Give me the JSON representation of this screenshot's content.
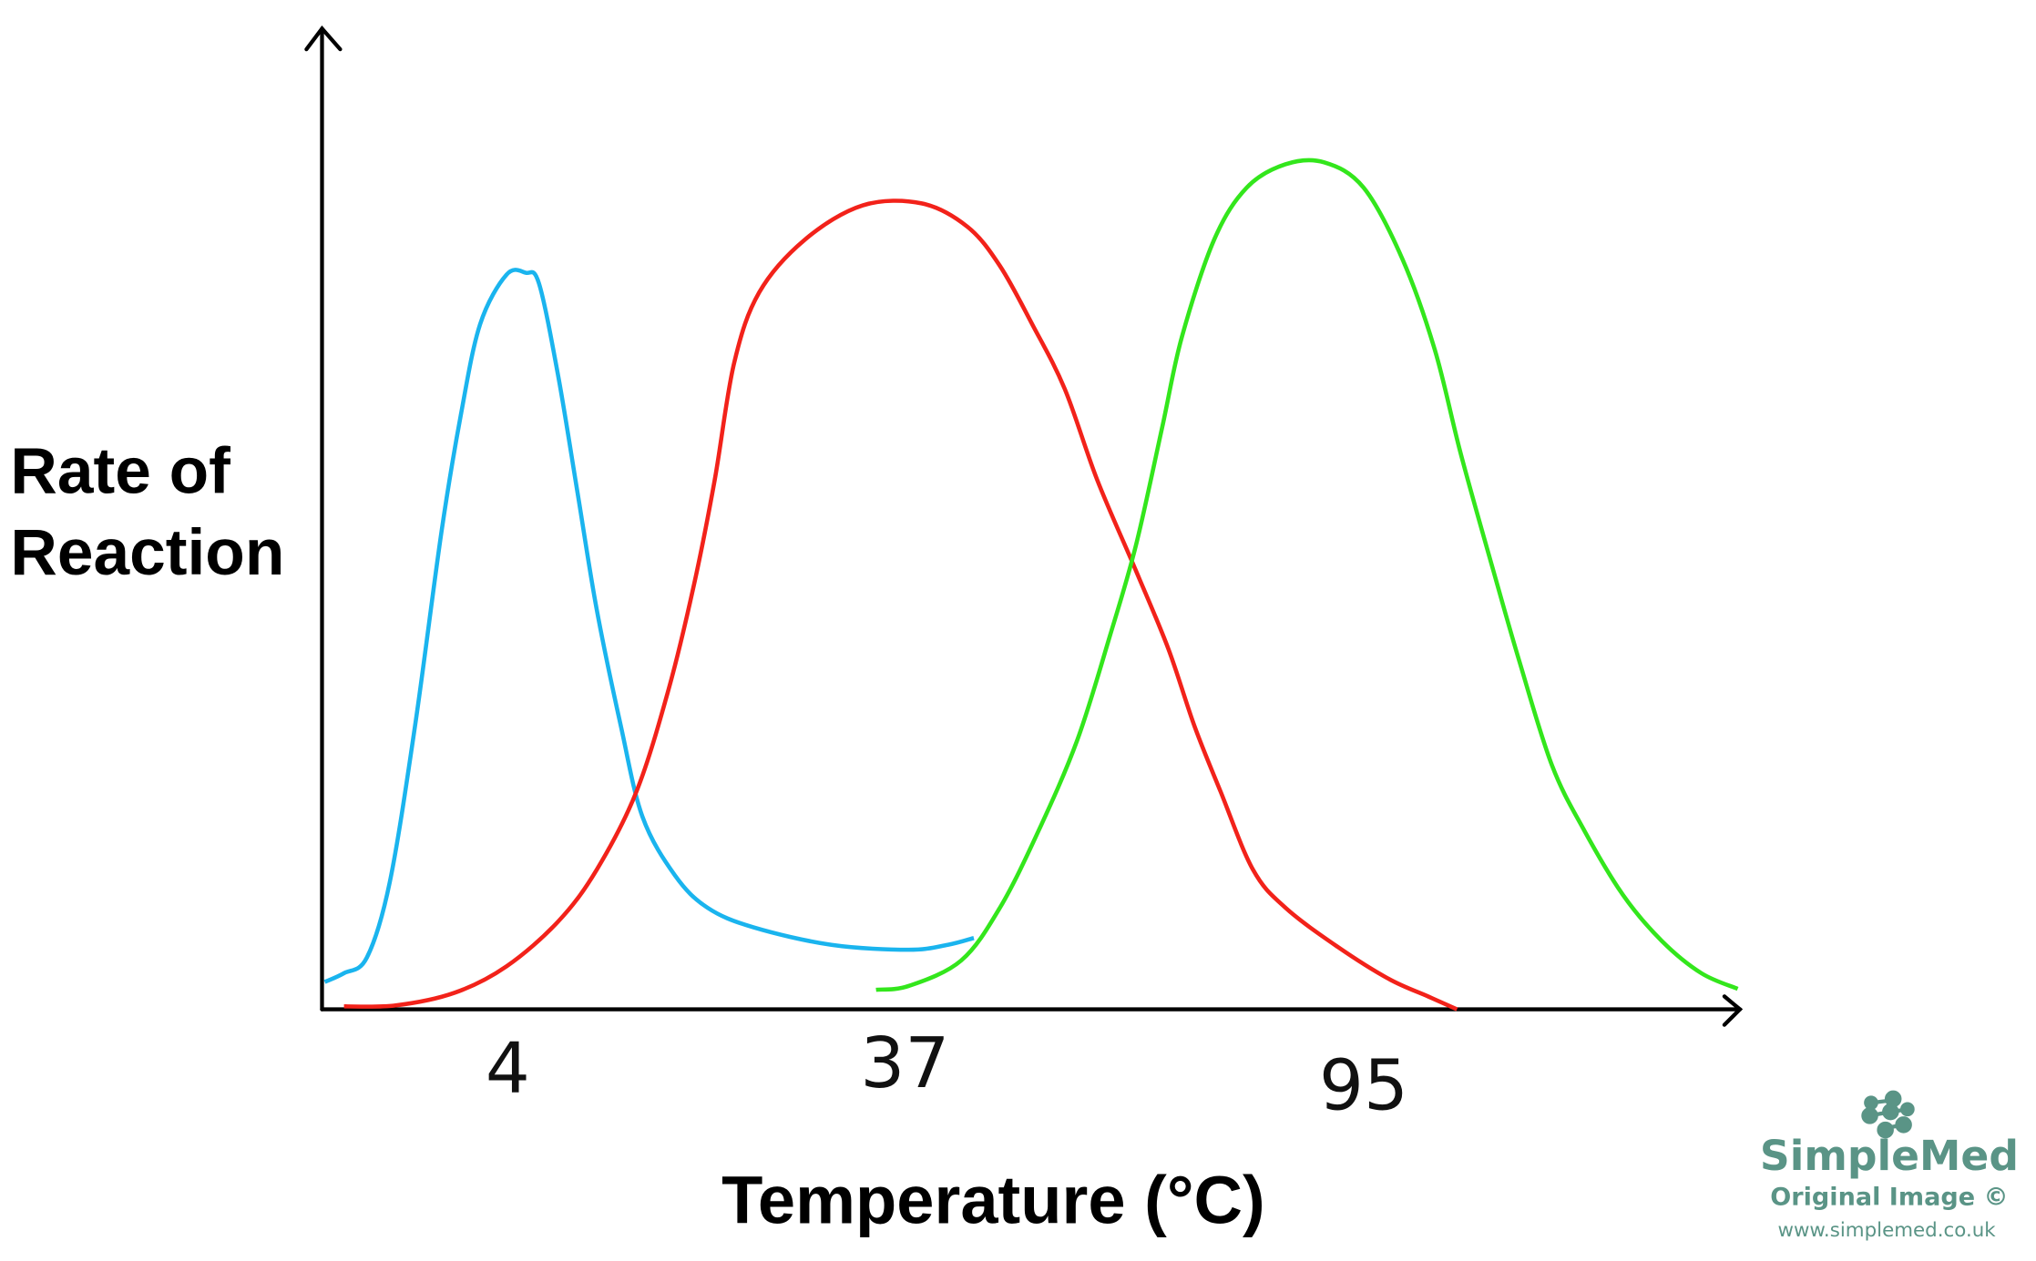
{
  "chart_data": {
    "type": "line",
    "title": "",
    "xlabel": "Temperature (°C)",
    "ylabel": [
      "Rate of",
      "Reaction"
    ],
    "x_ticks": [
      4,
      37,
      95
    ],
    "x_tick_labels": [
      "4",
      "37",
      "95"
    ],
    "ylim": [
      0,
      100
    ],
    "xlim": [
      -11.5,
      143
    ],
    "grid": false,
    "legend": "none",
    "series": [
      {
        "color": "#1ab4ee",
        "peak_x": 4,
        "x": [
          -11.2,
          -9.6,
          -7.7,
          -5.8,
          -3.7,
          -1.5,
          0.1,
          1.7,
          3.9,
          5.5,
          6.6,
          8.2,
          9.8,
          11.4,
          13.4,
          15.2,
          17.9,
          20.6,
          24.4,
          30.9,
          37.5,
          42.4,
          45.7
        ],
        "y": [
          2.8,
          3.7,
          5.3,
          13.0,
          29.0,
          48.9,
          60.8,
          70.1,
          75.2,
          75.4,
          74.3,
          64.8,
          52.9,
          40.9,
          29.0,
          19.7,
          13.7,
          10.4,
          8.4,
          6.6,
          6.1,
          6.6,
          7.3
        ]
      },
      {
        "color": "#f2221a",
        "peak_x": 37,
        "x": [
          -9.6,
          -5.3,
          -0.4,
          3.9,
          8.2,
          11.4,
          14.7,
          17.4,
          19.5,
          21.2,
          22.8,
          24.9,
          28.7,
          33.5,
          39.1,
          44.9,
          49.0,
          53.1,
          57.2,
          61.3,
          66.2,
          70.3,
          73.6,
          76.9,
          81.0,
          85.1,
          91.7,
          98.2,
          103.2,
          106.8
        ],
        "y": [
          0.3,
          0.4,
          1.7,
          4.4,
          9.0,
          14.3,
          22.3,
          32.9,
          43.6,
          54.2,
          66.1,
          73.4,
          78.8,
          82.3,
          82.5,
          80.1,
          76.1,
          70.1,
          63.5,
          54.2,
          44.9,
          36.9,
          29.0,
          22.3,
          14.3,
          10.4,
          6.4,
          3.1,
          1.3,
          0
        ]
      },
      {
        "color": "#33e61c",
        "peak_x": 95,
        "x": [
          34.6,
          37.5,
          44.1,
          49.0,
          53.9,
          58.8,
          62.9,
          66.2,
          69.5,
          72.0,
          76.1,
          80.2,
          85.1,
          90.0,
          95.0,
          99.9,
          104.0,
          107.3,
          111.4,
          114.7,
          118.8,
          122.9,
          127.8,
          132.7,
          137.7,
          142.3
        ],
        "y": [
          2.0,
          2.4,
          5.0,
          10.4,
          18.3,
          27.6,
          38.2,
          47.5,
          59.5,
          68.8,
          78.8,
          84.1,
          86.5,
          86.7,
          84.1,
          76.8,
          67.5,
          56.8,
          44.9,
          35.6,
          25.0,
          18.3,
          11.7,
          7.0,
          3.7,
          2.1
        ]
      }
    ]
  },
  "logo": {
    "name": "SimpleMed",
    "subtitle": "Original Image ©",
    "url": "www.simplemed.co.uk",
    "color": "#5a9486"
  }
}
